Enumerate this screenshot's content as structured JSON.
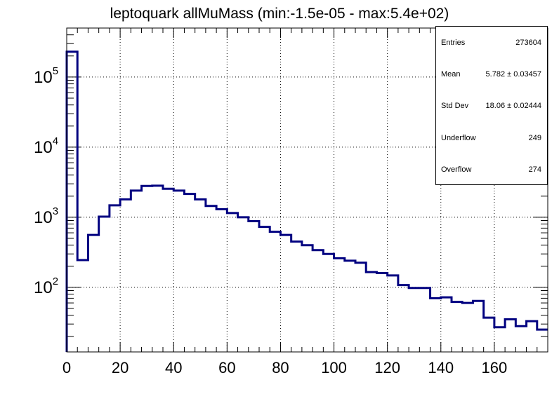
{
  "chart_data": {
    "type": "histogram",
    "title": "leptoquark allMuMass (min:-1.5e-05 - max:5.4e+02)",
    "xlabel": "",
    "ylabel": "",
    "xlim": [
      0,
      180
    ],
    "ylog": true,
    "ylim": [
      12,
      500000
    ],
    "grid": true,
    "bin_width": 4,
    "bin_edges": [
      0,
      4,
      8,
      12,
      16,
      20,
      24,
      28,
      32,
      36,
      40,
      44,
      48,
      52,
      56,
      60,
      64,
      68,
      72,
      76,
      80,
      84,
      88,
      92,
      96,
      100,
      104,
      108,
      112,
      116,
      120,
      124,
      128,
      132,
      136,
      140,
      144,
      148,
      152,
      156,
      160,
      164,
      168,
      172,
      176,
      180
    ],
    "values": [
      230000,
      245,
      560,
      1020,
      1480,
      1800,
      2400,
      2800,
      2820,
      2550,
      2400,
      2150,
      1800,
      1450,
      1300,
      1150,
      1000,
      880,
      730,
      620,
      560,
      450,
      400,
      340,
      300,
      260,
      240,
      225,
      165,
      160,
      148,
      108,
      98,
      98,
      70,
      72,
      62,
      60,
      64,
      37,
      27,
      35,
      28,
      33,
      25
    ],
    "x_ticks": [
      "0",
      "20",
      "40",
      "60",
      "80",
      "100",
      "120",
      "140",
      "160"
    ],
    "y_ticks": [
      {
        "base": "10",
        "exp": "2"
      },
      {
        "base": "10",
        "exp": "3"
      },
      {
        "base": "10",
        "exp": "4"
      },
      {
        "base": "10",
        "exp": "5"
      }
    ],
    "line_color": "#000080"
  },
  "stats": {
    "entries_label": "Entries",
    "entries": "273604",
    "mean_label": "Mean",
    "mean": "5.782 ± 0.03457",
    "stddev_label": "Std Dev",
    "stddev": "18.06 ± 0.02444",
    "underflow_label": "Underflow",
    "underflow": "249",
    "overflow_label": "Overflow",
    "overflow": "274"
  }
}
